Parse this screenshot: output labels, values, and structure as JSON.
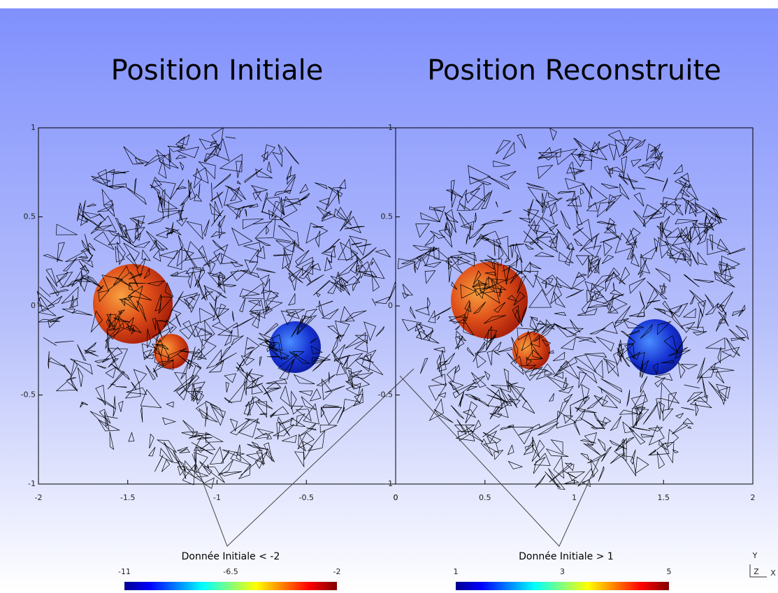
{
  "panels": [
    {
      "title": "Position Initiale",
      "x_ticks": [
        "-2",
        "-1.5",
        "-1",
        "-0.5",
        "0"
      ],
      "y_ticks": [
        "1",
        "0.5",
        "0",
        "-0.5",
        "-1"
      ],
      "colorbar": {
        "title": "Donnée Initiale < -2",
        "labels": [
          "-11",
          "-6.5",
          "-2"
        ]
      }
    },
    {
      "title": "Position Reconstruite",
      "x_ticks": [
        "0",
        "0.5",
        "1",
        "1.5",
        "2"
      ],
      "y_ticks": [
        "1",
        "0.5",
        "0",
        "-0.5",
        "-1"
      ],
      "colorbar": {
        "title": "Donnée Initiale > 1",
        "labels": [
          "1",
          "3",
          "5"
        ]
      }
    }
  ],
  "orientation": {
    "y": "Y",
    "z": "Z",
    "x": "X"
  }
}
